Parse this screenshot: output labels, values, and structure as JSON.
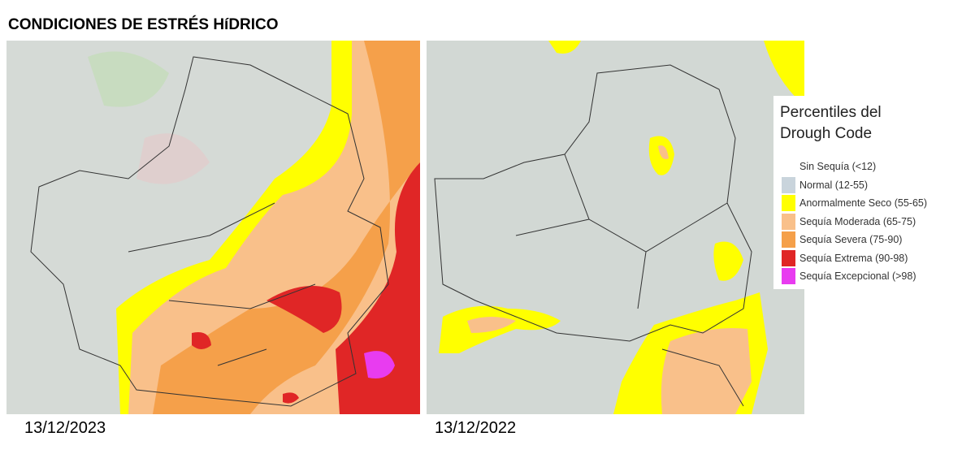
{
  "header": {
    "title": "CONDICIONES DE ESTRÉS HíDRICO"
  },
  "maps": [
    {
      "date": "13/12/2023"
    },
    {
      "date": "13/12/2022"
    }
  ],
  "legend": {
    "title": "Percentiles del Drough Code",
    "items": [
      {
        "label": "Sin Sequía (<12)",
        "color": "#ffffff"
      },
      {
        "label": "Normal (12-55)",
        "color": "#c9d4dc"
      },
      {
        "label": "Anormalmente Seco (55-65)",
        "color": "#ffff00"
      },
      {
        "label": "Sequía Moderada (65-75)",
        "color": "#f9c08a"
      },
      {
        "label": "Sequía Severa (75-90)",
        "color": "#f5a04a"
      },
      {
        "label": "Sequía Extrema (90-98)",
        "color": "#e02626"
      },
      {
        "label": "Sequía Excepcional (>98)",
        "color": "#e83cf0"
      }
    ]
  }
}
